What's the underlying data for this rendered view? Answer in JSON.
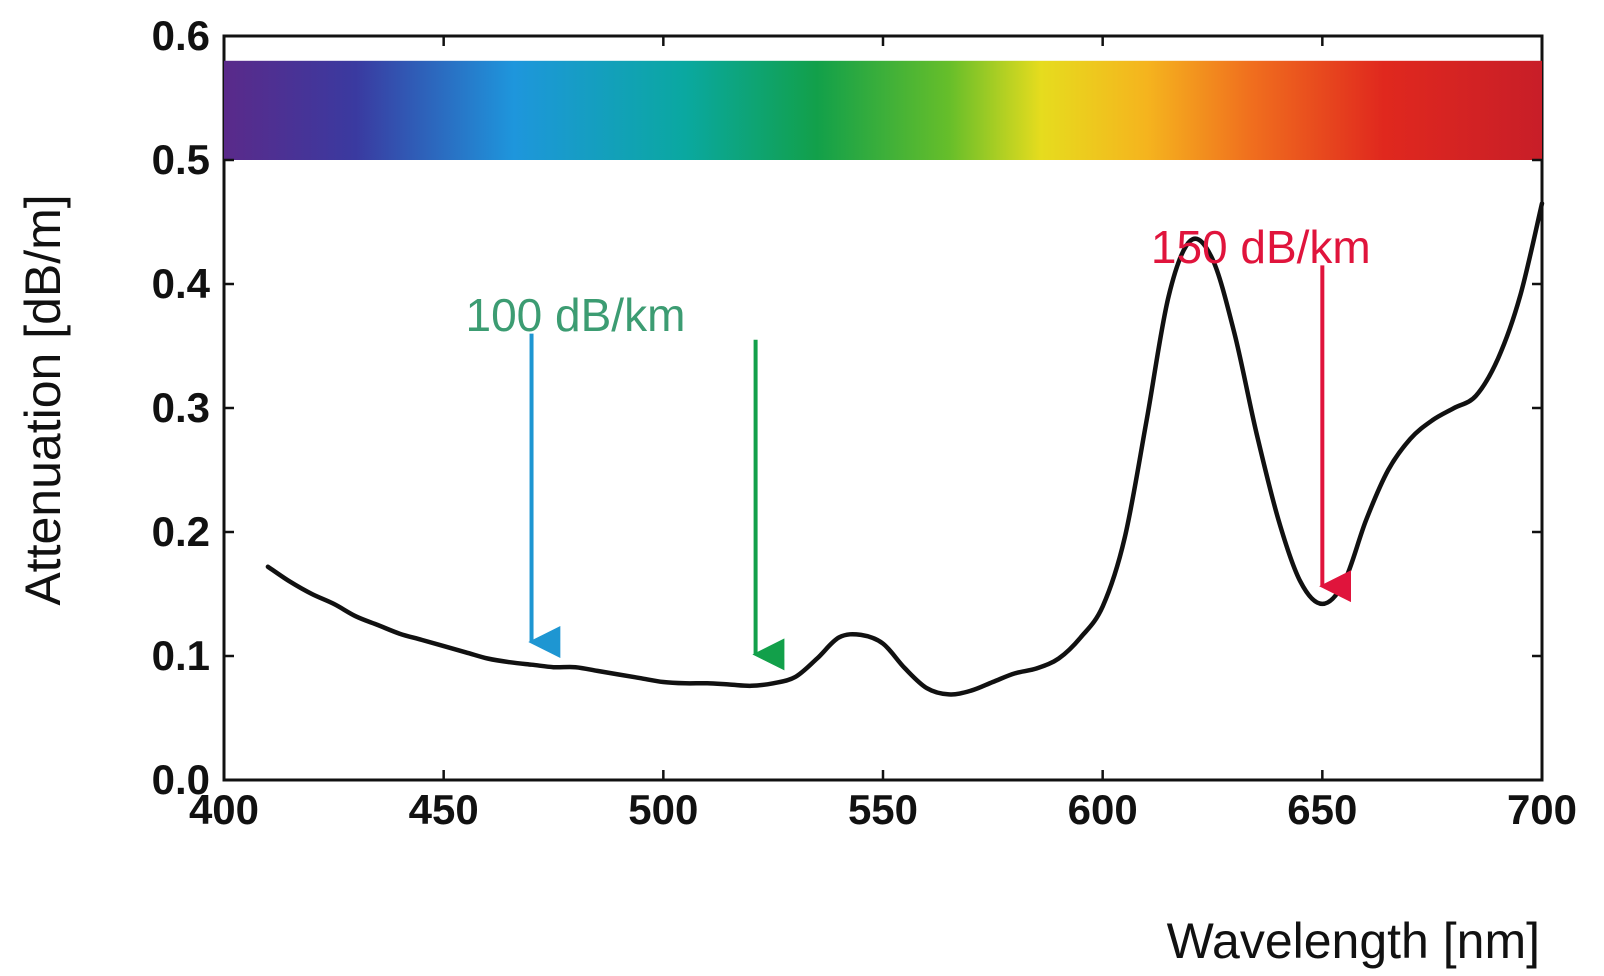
{
  "chart_data": {
    "type": "line",
    "xlabel": "Wavelength [nm]",
    "ylabel": "Attenuation [dB/m]",
    "xlim": [
      400,
      700
    ],
    "ylim": [
      0.0,
      0.6
    ],
    "x_ticks": [
      "400",
      "450",
      "500",
      "550",
      "600",
      "650",
      "700"
    ],
    "y_ticks": [
      "0.0",
      "0.1",
      "0.2",
      "0.3",
      "0.4",
      "0.5",
      "0.6"
    ],
    "grid": false,
    "legend": "none",
    "spectrum_band": {
      "y_range": [
        0.5,
        0.58
      ],
      "x_range": [
        400,
        700
      ]
    },
    "series": [
      {
        "color": "#111111",
        "x": [
          410,
          415,
          420,
          425,
          430,
          435,
          440,
          445,
          450,
          455,
          460,
          465,
          470,
          475,
          480,
          485,
          490,
          495,
          500,
          505,
          510,
          515,
          520,
          525,
          530,
          535,
          540,
          545,
          550,
          555,
          560,
          565,
          570,
          575,
          580,
          585,
          590,
          595,
          600,
          605,
          610,
          615,
          620,
          625,
          630,
          635,
          640,
          645,
          650,
          655,
          660,
          665,
          670,
          675,
          680,
          685,
          690,
          695,
          700
        ],
        "y": [
          0.172,
          0.16,
          0.15,
          0.142,
          0.132,
          0.125,
          0.118,
          0.113,
          0.108,
          0.103,
          0.098,
          0.095,
          0.093,
          0.091,
          0.091,
          0.088,
          0.085,
          0.082,
          0.079,
          0.078,
          0.078,
          0.077,
          0.076,
          0.078,
          0.083,
          0.098,
          0.115,
          0.117,
          0.11,
          0.09,
          0.074,
          0.069,
          0.072,
          0.079,
          0.086,
          0.09,
          0.098,
          0.115,
          0.14,
          0.195,
          0.29,
          0.39,
          0.435,
          0.42,
          0.36,
          0.28,
          0.21,
          0.16,
          0.142,
          0.16,
          0.21,
          0.25,
          0.275,
          0.29,
          0.3,
          0.31,
          0.34,
          0.39,
          0.465
        ]
      }
    ],
    "annotations": [
      {
        "text": "100 dB/km",
        "color": "#3c9c72",
        "label_pos": [
          480,
          0.375
        ],
        "arrows": [
          {
            "color": "#1e96d2",
            "x": 470,
            "from": 0.36,
            "to": 0.1
          },
          {
            "color": "#12a04a",
            "x": 521,
            "from": 0.355,
            "to": 0.09
          }
        ]
      },
      {
        "text": "150 dB/km",
        "color": "#e0143c",
        "label_pos": [
          636,
          0.43
        ],
        "arrows": [
          {
            "color": "#e0143c",
            "x": 650,
            "from": 0.415,
            "to": 0.145
          }
        ]
      }
    ]
  }
}
